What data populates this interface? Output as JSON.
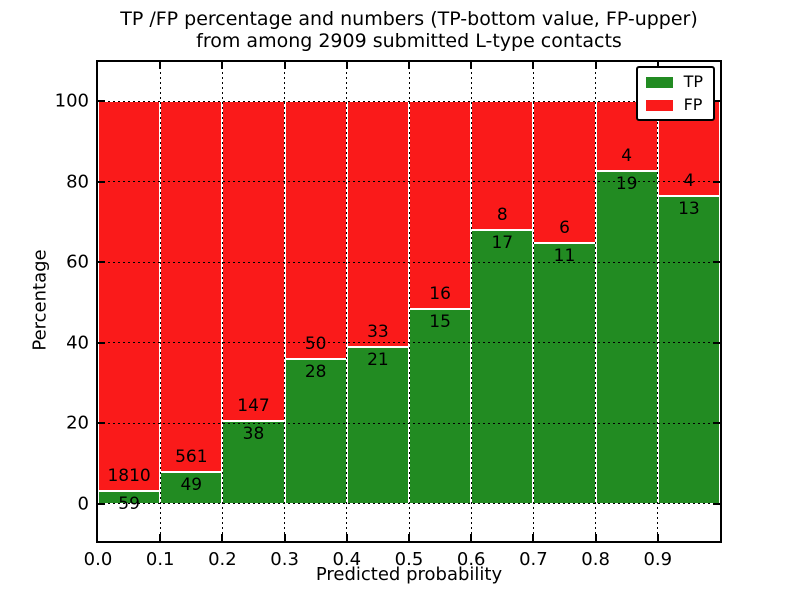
{
  "title": {
    "line1": "TP /FP percentage and numbers (TP-bottom value, FP-upper)",
    "line2": "from among 2909 submitted L-type contacts"
  },
  "colors": {
    "tp": "#228b22",
    "fp": "#fa1a1a",
    "bar_edge": "#ffffff",
    "grid": "#000000",
    "axis": "#000000"
  },
  "legend": {
    "items": [
      {
        "label": "TP",
        "series": "tp"
      },
      {
        "label": "FP",
        "series": "fp"
      }
    ],
    "position": "upper right"
  },
  "chart_data": {
    "type": "bar",
    "stacked": true,
    "normalized_to_percent": true,
    "title": "TP /FP percentage and numbers (TP-bottom value, FP-upper) from among 2909 submitted L-type contacts",
    "xlabel": "Predicted probability",
    "ylabel": "Percentage",
    "total_submitted": 2909,
    "xlim": [
      0.0,
      1.0
    ],
    "ylim": [
      -9.2,
      109.7
    ],
    "bin_width": 0.1,
    "x_tick_labels": [
      "0.0",
      "0.1",
      "0.2",
      "0.3",
      "0.4",
      "0.5",
      "0.6",
      "0.7",
      "0.8",
      "0.9"
    ],
    "y_ticks": [
      0,
      20,
      40,
      60,
      80,
      100
    ],
    "grid": "dotted",
    "bins": [
      {
        "x0": 0.0,
        "tp": 59,
        "fp": 1810
      },
      {
        "x0": 0.1,
        "tp": 49,
        "fp": 561
      },
      {
        "x0": 0.2,
        "tp": 38,
        "fp": 147
      },
      {
        "x0": 0.3,
        "tp": 28,
        "fp": 50
      },
      {
        "x0": 0.4,
        "tp": 21,
        "fp": 33
      },
      {
        "x0": 0.5,
        "tp": 15,
        "fp": 16
      },
      {
        "x0": 0.6,
        "tp": 17,
        "fp": 8
      },
      {
        "x0": 0.7,
        "tp": 11,
        "fp": 6
      },
      {
        "x0": 0.8,
        "tp": 19,
        "fp": 4
      },
      {
        "x0": 0.9,
        "tp": 13,
        "fp": 4
      }
    ],
    "series": [
      {
        "name": "TP",
        "role": "tp"
      },
      {
        "name": "FP",
        "role": "fp"
      }
    ]
  }
}
